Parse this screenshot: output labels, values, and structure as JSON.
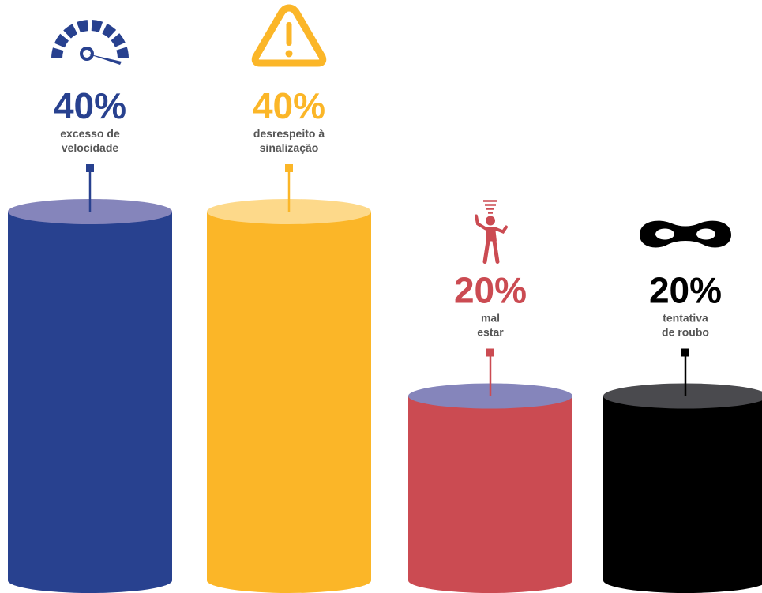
{
  "chart_data": {
    "type": "bar",
    "categories": [
      "excesso de velocidade",
      "desrespeito à sinalização",
      "mal estar",
      "tentativa de roubo"
    ],
    "values": [
      40,
      40,
      20,
      20
    ],
    "value_labels": [
      "40%",
      "40%",
      "20%",
      "20%"
    ],
    "label_lines": [
      [
        "excesso de",
        "velocidade"
      ],
      [
        "desrespeito à",
        "sinalização"
      ],
      [
        "mal",
        "estar"
      ],
      [
        "tentativa",
        "de roubo"
      ]
    ],
    "icons": [
      "speedometer-icon",
      "warning-icon",
      "dizzy-person-icon",
      "mask-icon"
    ],
    "colors": {
      "bars": [
        "#28418F",
        "#FBB628",
        "#CB4B52",
        "#000000"
      ],
      "tops": [
        "#8585BB",
        "#FDD98A",
        "#8585BB",
        "#4A4A4E"
      ],
      "stems": [
        "#28418F",
        "#FBB628",
        "#CB4B52",
        "#000000"
      ]
    },
    "ylim": [
      0,
      40
    ]
  }
}
